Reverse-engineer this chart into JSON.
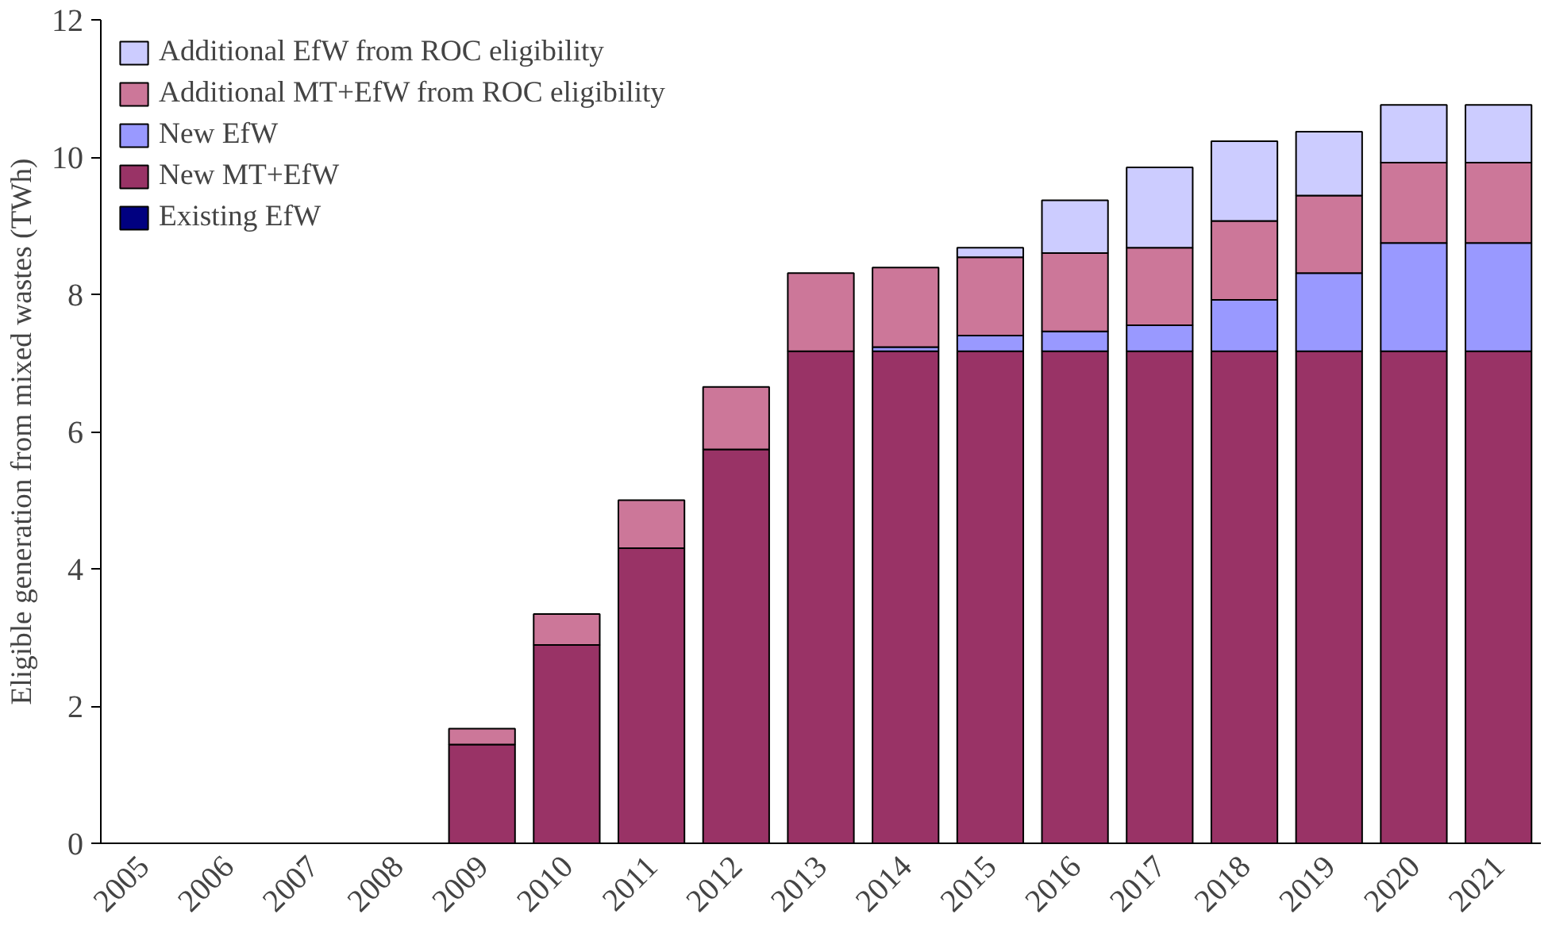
{
  "chart_data": {
    "type": "bar",
    "stacked": true,
    "ylabel": "Eligible generation from mixed wastes (TWh)",
    "categories": [
      "2005",
      "2006",
      "2007",
      "2008",
      "2009",
      "2010",
      "2011",
      "2012",
      "2013",
      "2014",
      "2015",
      "2016",
      "2017",
      "2018",
      "2019",
      "2020",
      "2021"
    ],
    "series": [
      {
        "name": "Existing EfW",
        "color": "#000080",
        "values": [
          0,
          0,
          0,
          0,
          0,
          0,
          0,
          0,
          0,
          0,
          0,
          0,
          0,
          0,
          0,
          0,
          0
        ]
      },
      {
        "name": "New MT+EfW",
        "color": "#993366",
        "values": [
          0,
          0,
          0,
          0,
          1.44,
          2.89,
          4.3,
          5.74,
          7.17,
          7.17,
          7.17,
          7.17,
          7.17,
          7.17,
          7.17,
          7.17,
          7.17
        ]
      },
      {
        "name": "New EfW",
        "color": "#9999ff",
        "values": [
          0,
          0,
          0,
          0,
          0,
          0,
          0,
          0,
          0,
          0.06,
          0.23,
          0.29,
          0.38,
          0.75,
          1.14,
          1.58,
          1.58
        ]
      },
      {
        "name": "Additional MT+EfW from ROC eligibility",
        "color": "#cc7799",
        "values": [
          0,
          0,
          0,
          0,
          0.23,
          0.45,
          0.7,
          0.91,
          1.14,
          1.16,
          1.14,
          1.14,
          1.13,
          1.15,
          1.13,
          1.17,
          1.17
        ]
      },
      {
        "name": "Additional EfW from ROC eligibility",
        "color": "#ccccff",
        "values": [
          0,
          0,
          0,
          0,
          0,
          0,
          0,
          0,
          0,
          0,
          0.14,
          0.77,
          1.17,
          1.16,
          0.93,
          0.84,
          0.84
        ]
      }
    ],
    "ylim": [
      0,
      12
    ],
    "yticks": [
      0,
      2,
      4,
      6,
      8,
      10,
      12
    ],
    "grid": false,
    "legend": "top left"
  }
}
